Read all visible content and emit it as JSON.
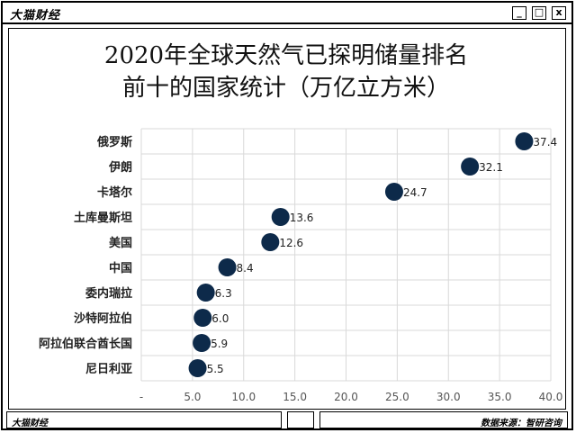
{
  "window": {
    "brand": "大猫财经",
    "controls": {
      "minimize": "_",
      "maximize": "□",
      "close": "x"
    }
  },
  "footer": {
    "left": "大猫财经",
    "right": "数据来源：智研咨询"
  },
  "chart_data": {
    "type": "scatter",
    "title_lines": [
      "2020年全球天然气已探明储量排名",
      "前十的国家统计（万亿立方米）"
    ],
    "categories": [
      "俄罗斯",
      "伊朗",
      "卡塔尔",
      "土库曼斯坦",
      "美国",
      "中国",
      "委内瑞拉",
      "沙特阿拉伯",
      "阿拉伯联合酋长国",
      "尼日利亚"
    ],
    "values": [
      37.4,
      32.1,
      24.7,
      13.6,
      12.6,
      8.4,
      6.3,
      6.0,
      5.9,
      5.5
    ],
    "data_labels": [
      "37.4",
      "32.1",
      "24.7",
      "13.6",
      "12.6",
      "8.4",
      "6.3",
      "6.0",
      "5.9",
      "5.5"
    ],
    "x_ticks": [
      "-",
      "5.0",
      "10.0",
      "15.0",
      "20.0",
      "25.0",
      "30.0",
      "35.0",
      "40.0"
    ],
    "xlim": [
      0,
      40
    ],
    "grid": true,
    "marker_color": "#0d2a4a"
  }
}
